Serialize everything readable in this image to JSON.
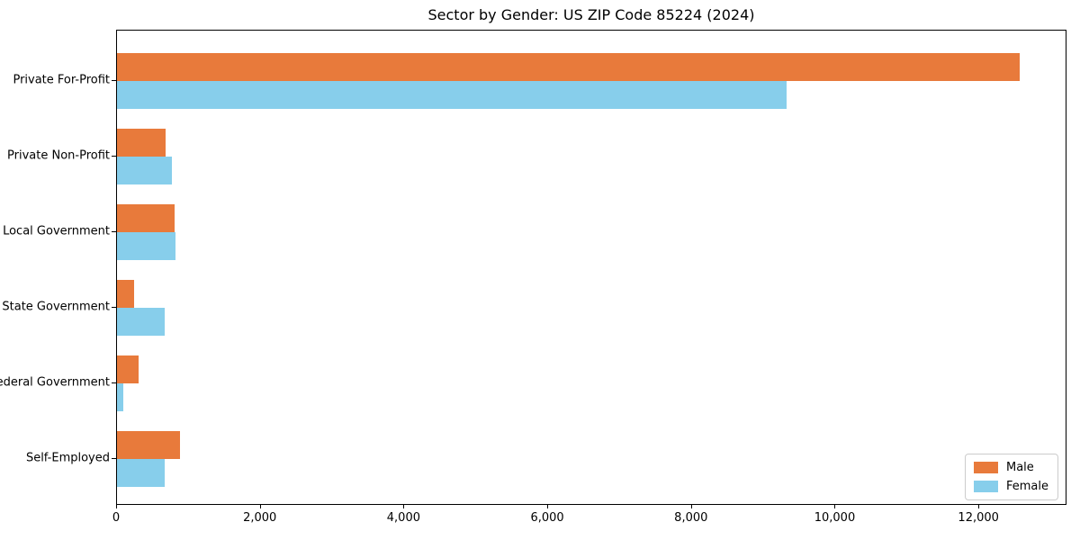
{
  "chart_data": {
    "type": "bar",
    "orientation": "horizontal",
    "title": "Sector by Gender: US ZIP Code 85224 (2024)",
    "categories": [
      "Private For-Profit",
      "Private Non-Profit",
      "Local Government",
      "State Government",
      "Federal Government",
      "Self-Employed"
    ],
    "series": [
      {
        "name": "Male",
        "color": "#e87a3b",
        "values": [
          12590,
          675,
          800,
          240,
          300,
          875
        ]
      },
      {
        "name": "Female",
        "color": "#87ceeb",
        "values": [
          9340,
          760,
          810,
          665,
          90,
          665
        ]
      }
    ],
    "xlabel": "",
    "ylabel": "",
    "xlim": [
      0,
      13225
    ],
    "x_tick_values": [
      0,
      2000,
      4000,
      6000,
      8000,
      10000,
      12000
    ],
    "x_tick_labels": [
      "0",
      "2,000",
      "4,000",
      "6,000",
      "8,000",
      "10,000",
      "12,000"
    ],
    "grid": "off",
    "legend_position": "lower right"
  }
}
